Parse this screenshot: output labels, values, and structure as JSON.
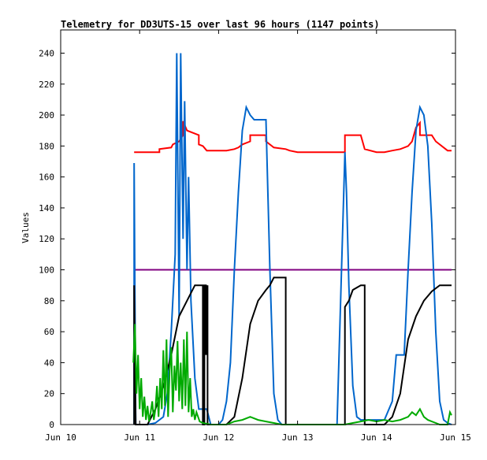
{
  "chart_data": {
    "type": "line",
    "title": "Telemetry for DD3UTS-15 over last 96 hours (1147 points)",
    "xlabel": "",
    "ylabel": "Values",
    "x_tick_labels": [
      "Jun 10",
      "Jun 11",
      "Jun 12",
      "Jun 13",
      "Jun 14",
      "Jun 15"
    ],
    "x_units": "days since Jun 10",
    "xlim": [
      0,
      5
    ],
    "ylim": [
      0,
      255
    ],
    "y_ticks": [
      0,
      20,
      40,
      60,
      80,
      100,
      120,
      140,
      160,
      180,
      200,
      220,
      240
    ],
    "grid": false,
    "legend": "none",
    "series": [
      {
        "color": "#ff0000",
        "x": [
          0.93,
          1.25,
          1.25,
          1.4,
          1.42,
          1.5,
          1.55,
          1.55,
          1.6,
          1.75,
          1.75,
          1.8,
          1.85,
          2.0,
          2.1,
          2.2,
          2.25,
          2.3,
          2.4,
          2.4,
          2.6,
          2.6,
          2.7,
          2.85,
          2.9,
          3.0,
          3.2,
          3.6,
          3.6,
          3.65,
          3.65,
          3.8,
          3.85,
          4.0,
          4.1,
          4.2,
          4.3,
          4.4,
          4.45,
          4.5,
          4.55,
          4.55,
          4.7,
          4.75,
          4.85,
          4.9,
          4.95
        ],
        "y": [
          176,
          176,
          178,
          179,
          181,
          183,
          187,
          196,
          190,
          187,
          181,
          180,
          177,
          177,
          177,
          178,
          179,
          181,
          183,
          187,
          187,
          183,
          179,
          178,
          177,
          176,
          176,
          176,
          187,
          187,
          187,
          187,
          178,
          176,
          176,
          177,
          178,
          180,
          183,
          192,
          195,
          187,
          187,
          183,
          179,
          177,
          177
        ]
      },
      {
        "color": "#800080",
        "x": [
          0.93,
          4.95
        ],
        "y": [
          100,
          100
        ]
      },
      {
        "color": "#0066cc",
        "x": [
          0.93,
          0.93,
          0.95,
          1.0,
          1.1,
          1.2,
          1.3,
          1.35,
          1.4,
          1.45,
          1.47,
          1.5,
          1.52,
          1.55,
          1.57,
          1.6,
          1.62,
          1.65,
          1.7,
          1.75,
          1.8,
          1.85,
          1.9,
          1.95,
          2.0,
          2.05,
          2.1,
          2.15,
          2.2,
          2.25,
          2.3,
          2.35,
          2.4,
          2.45,
          2.5,
          2.55,
          2.6,
          2.65,
          2.7,
          2.75,
          2.8,
          2.85,
          2.9,
          2.95,
          3.0,
          3.1,
          3.2,
          3.3,
          3.4,
          3.5,
          3.6,
          3.62,
          3.65,
          3.7,
          3.75,
          3.8,
          3.9,
          4.0,
          4.1,
          4.2,
          4.25,
          4.3,
          4.35,
          4.4,
          4.45,
          4.5,
          4.55,
          4.6,
          4.65,
          4.7,
          4.75,
          4.8,
          4.85,
          4.9,
          4.95
        ],
        "y": [
          0,
          169,
          0,
          0,
          0,
          1,
          5,
          20,
          60,
          110,
          240,
          70,
          240,
          120,
          209,
          100,
          160,
          80,
          30,
          10,
          10,
          10,
          0,
          0,
          0,
          3,
          15,
          40,
          100,
          150,
          190,
          205,
          200,
          197,
          197,
          197,
          197,
          100,
          20,
          3,
          0,
          0,
          0,
          0,
          0,
          0,
          0,
          0,
          0,
          0,
          176,
          150,
          90,
          25,
          5,
          3,
          3,
          3,
          3,
          15,
          45,
          45,
          45,
          100,
          150,
          190,
          205,
          200,
          180,
          130,
          60,
          15,
          3,
          1,
          0
        ]
      },
      {
        "color": "#000000",
        "x": [
          0.93,
          0.93,
          0.95,
          1.0,
          1.1,
          1.2,
          1.3,
          1.4,
          1.5,
          1.6,
          1.7,
          1.8,
          1.8,
          1.82,
          1.82,
          1.84,
          1.84,
          1.86,
          1.86,
          1.9,
          1.9,
          2.0,
          2.05,
          2.1,
          2.2,
          2.3,
          2.4,
          2.5,
          2.6,
          2.65,
          2.7,
          2.85,
          2.85,
          2.9,
          3.0,
          3.2,
          3.4,
          3.6,
          3.6,
          3.65,
          3.7,
          3.8,
          3.85,
          3.85,
          3.9,
          4.0,
          4.1,
          4.2,
          4.3,
          4.4,
          4.5,
          4.6,
          4.7,
          4.8,
          4.9,
          4.95
        ],
        "y": [
          0,
          90,
          0,
          0,
          0,
          10,
          25,
          45,
          70,
          80,
          90,
          90,
          0,
          0,
          90,
          90,
          45,
          90,
          0,
          0,
          0,
          0,
          0,
          0,
          5,
          30,
          65,
          80,
          87,
          90,
          95,
          95,
          0,
          0,
          0,
          0,
          0,
          0,
          76,
          80,
          87,
          90,
          90,
          0,
          0,
          0,
          0,
          5,
          20,
          55,
          70,
          80,
          86,
          90,
          90,
          90
        ]
      },
      {
        "color": "#00aa00",
        "x": [
          0.92,
          0.94,
          0.96,
          0.98,
          1.0,
          1.02,
          1.04,
          1.06,
          1.08,
          1.1,
          1.12,
          1.14,
          1.16,
          1.18,
          1.2,
          1.22,
          1.24,
          1.26,
          1.28,
          1.3,
          1.32,
          1.34,
          1.36,
          1.38,
          1.4,
          1.42,
          1.44,
          1.46,
          1.48,
          1.5,
          1.52,
          1.54,
          1.56,
          1.58,
          1.6,
          1.62,
          1.64,
          1.66,
          1.68,
          1.7,
          1.72,
          1.76,
          1.8,
          1.9,
          2.0,
          2.1,
          2.2,
          2.3,
          2.4,
          2.5,
          2.6,
          2.7,
          2.8,
          2.9,
          3.0,
          3.2,
          3.4,
          3.6,
          3.7,
          3.8,
          3.9,
          4.0,
          4.1,
          4.2,
          4.3,
          4.4,
          4.45,
          4.5,
          4.55,
          4.6,
          4.65,
          4.7,
          4.75,
          4.8,
          4.85,
          4.9,
          4.93,
          4.95
        ],
        "y": [
          40,
          65,
          20,
          45,
          10,
          30,
          5,
          18,
          3,
          12,
          2,
          8,
          15,
          3,
          10,
          25,
          5,
          30,
          10,
          48,
          12,
          55,
          5,
          35,
          50,
          8,
          38,
          22,
          54,
          15,
          40,
          10,
          55,
          12,
          60,
          8,
          30,
          5,
          10,
          3,
          8,
          2,
          1,
          0,
          0,
          0,
          2,
          3,
          5,
          3,
          2,
          1,
          0,
          0,
          0,
          0,
          0,
          0,
          1,
          2,
          3,
          2,
          3,
          2,
          3,
          5,
          8,
          6,
          10,
          5,
          3,
          2,
          1,
          0,
          0,
          0,
          8,
          6
        ]
      }
    ]
  }
}
